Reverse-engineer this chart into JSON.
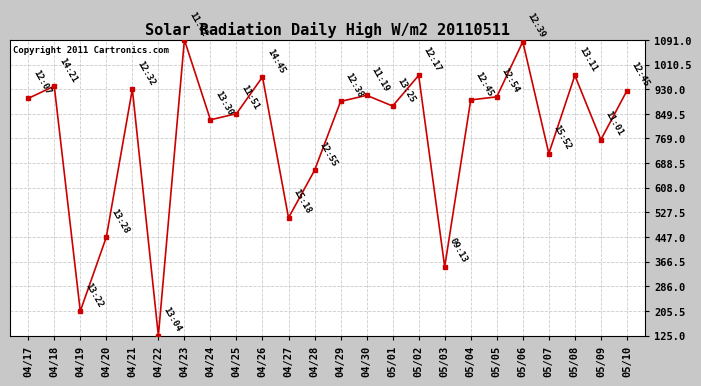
{
  "title": "Solar Radiation Daily High W/m2 20110511",
  "copyright": "Copyright 2011 Cartronics.com",
  "categories": [
    "04/17",
    "04/18",
    "04/19",
    "04/20",
    "04/21",
    "04/22",
    "04/23",
    "04/24",
    "04/25",
    "04/26",
    "04/27",
    "04/28",
    "04/29",
    "04/30",
    "05/01",
    "05/02",
    "05/03",
    "05/04",
    "05/05",
    "05/06",
    "05/07",
    "05/08",
    "05/09",
    "05/10"
  ],
  "values": [
    900,
    940,
    205,
    447,
    930,
    125,
    1091,
    830,
    850,
    970,
    510,
    665,
    890,
    910,
    875,
    975,
    350,
    895,
    905,
    1085,
    720,
    975,
    765,
    925
  ],
  "labels": [
    "12:07",
    "14:21",
    "13:22",
    "13:28",
    "12:32",
    "13:04",
    "11:02",
    "13:30",
    "11:51",
    "14:45",
    "15:18",
    "12:55",
    "12:38",
    "11:19",
    "13:25",
    "12:17",
    "09:13",
    "12:45",
    "12:54",
    "12:39",
    "15:52",
    "13:11",
    "11:01",
    "12:45"
  ],
  "line_color": "#cc0000",
  "marker_color": "#cc0000",
  "fig_bg_color": "#c8c8c8",
  "plot_bg_color": "#ffffff",
  "grid_color": "#cccccc",
  "title_fontsize": 11,
  "label_fontsize": 6.5,
  "tick_fontsize": 7.5,
  "copyright_fontsize": 6.5,
  "ymin": 125.0,
  "ymax": 1091.0,
  "yticks": [
    125.0,
    205.5,
    286.0,
    366.5,
    447.0,
    527.5,
    608.0,
    688.5,
    769.0,
    849.5,
    930.0,
    1010.5,
    1091.0
  ]
}
